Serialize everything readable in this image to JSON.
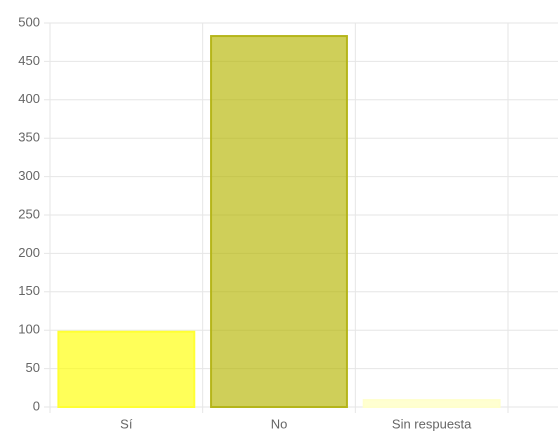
{
  "chart_data": {
    "type": "bar",
    "categories": [
      "Sí",
      "No",
      "Sin respuesta"
    ],
    "values": [
      98,
      483,
      9
    ],
    "colors": [
      "rgba(255,255,0,0.65)",
      "rgba(181,181,0,0.65)",
      "rgba(255,255,153,0.45)"
    ],
    "border_colors": [
      "#ffff33",
      "#b5b51a",
      "#ffffcc"
    ],
    "ylim": [
      0,
      500
    ],
    "yticks": [
      0,
      50,
      100,
      150,
      200,
      250,
      300,
      350,
      400,
      450,
      500
    ],
    "grid": true
  }
}
